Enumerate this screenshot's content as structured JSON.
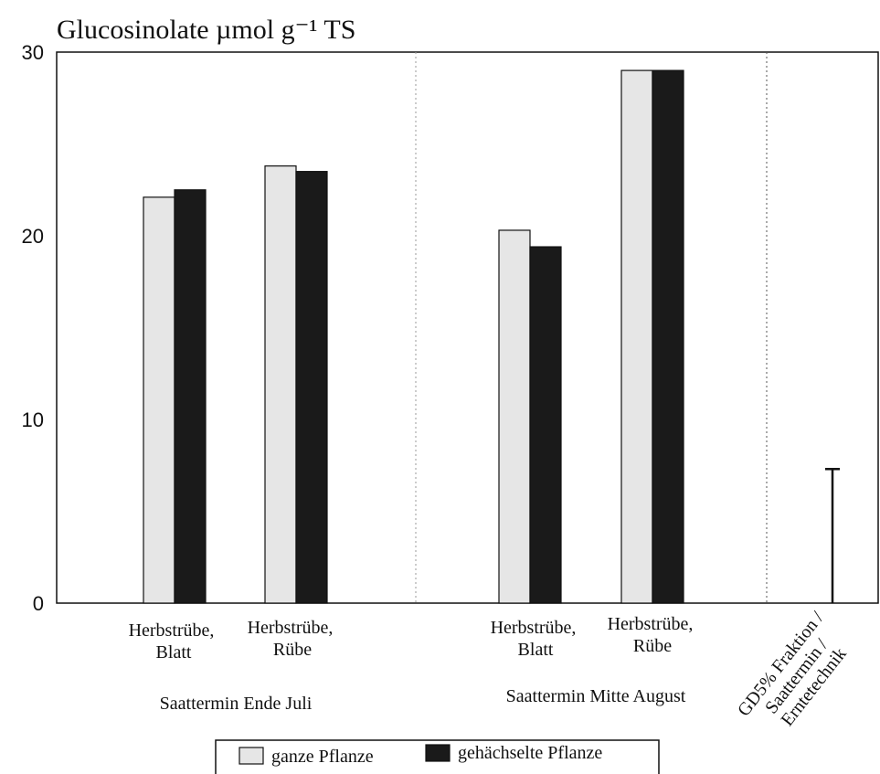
{
  "chart_data": {
    "type": "bar",
    "title": "Glucosinolate µmol g⁻¹ TS",
    "ylim": [
      0,
      30
    ],
    "yticks": [
      "0",
      "10",
      "20",
      "30"
    ],
    "groups": [
      {
        "label": "Saattermin Ende Juli",
        "categories": [
          {
            "line1": "Herbstrübe,",
            "line2": "Blatt"
          },
          {
            "line1": "Herbstrübe,",
            "line2": "Rübe"
          }
        ]
      },
      {
        "label": "Saattermin Mitte August",
        "categories": [
          {
            "line1": "Herbstrübe,",
            "line2": "Blatt"
          },
          {
            "line1": "Herbstrübe,",
            "line2": "Rübe"
          }
        ]
      }
    ],
    "series": [
      {
        "name": "ganze Pflanze",
        "color": "#e6e6e6",
        "values": [
          22.1,
          23.8,
          20.3,
          29.0
        ]
      },
      {
        "name": "gehächselte Pflanze",
        "color": "#1a1a1a",
        "values": [
          22.5,
          23.5,
          19.4,
          29.0
        ]
      }
    ],
    "lsd": {
      "value": 7.3,
      "lines": [
        "GD5% Fraktion /",
        "Saattermin /",
        "Erntetechnik"
      ]
    }
  }
}
